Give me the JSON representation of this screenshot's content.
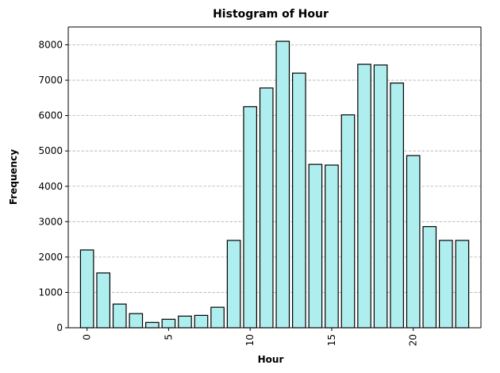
{
  "chart_data": {
    "type": "bar",
    "title": "Histogram of Hour",
    "xlabel": "Hour",
    "ylabel": "Frequency",
    "x": [
      0,
      1,
      2,
      3,
      4,
      5,
      6,
      7,
      8,
      9,
      10,
      11,
      12,
      13,
      14,
      15,
      16,
      17,
      18,
      19,
      20,
      21,
      22,
      23
    ],
    "values": [
      2200,
      1550,
      670,
      400,
      150,
      240,
      330,
      350,
      580,
      2470,
      6250,
      6780,
      8100,
      7200,
      4620,
      4600,
      6020,
      7450,
      7430,
      6920,
      4870,
      2860,
      2470,
      2470
    ],
    "xlim": [
      -1.15,
      24.15
    ],
    "ylim": [
      0,
      8505
    ],
    "x_ticks": [
      0,
      5,
      10,
      15,
      20
    ],
    "x_tick_labels": [
      "0",
      "5",
      "10",
      "15",
      "20"
    ],
    "y_ticks": [
      0,
      1000,
      2000,
      3000,
      4000,
      5000,
      6000,
      7000,
      8000
    ],
    "y_tick_labels": [
      "0",
      "1000",
      "2000",
      "3000",
      "4000",
      "5000",
      "6000",
      "7000",
      "8000"
    ],
    "grid": "y-dashed",
    "colors": {
      "bar_fill": "#afeeee",
      "bar_edge": "#000000",
      "grid": "#b0b0b0",
      "axis": "#000000"
    }
  }
}
